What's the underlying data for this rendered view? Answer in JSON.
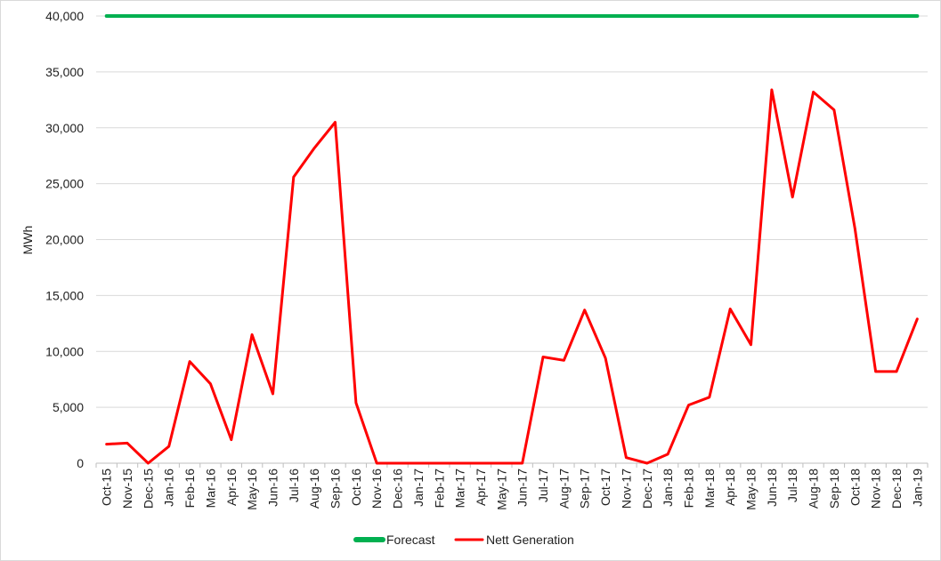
{
  "chart_data": {
    "type": "line",
    "title": "",
    "xlabel": "",
    "ylabel": "MWh",
    "ylim": [
      0,
      40000
    ],
    "yticks": [
      0,
      5000,
      10000,
      15000,
      20000,
      25000,
      30000,
      35000,
      40000
    ],
    "ytick_labels": [
      "0",
      "5,000",
      "10,000",
      "15,000",
      "20,000",
      "25,000",
      "30,000",
      "35,000",
      "40,000"
    ],
    "grid": true,
    "legend_position": "bottom",
    "categories": [
      "Oct-15",
      "Nov-15",
      "Dec-15",
      "Jan-16",
      "Feb-16",
      "Mar-16",
      "Apr-16",
      "May-16",
      "Jun-16",
      "Jul-16",
      "Aug-16",
      "Sep-16",
      "Oct-16",
      "Nov-16",
      "Dec-16",
      "Jan-17",
      "Feb-17",
      "Mar-17",
      "Apr-17",
      "May-17",
      "Jun-17",
      "Jul-17",
      "Aug-17",
      "Sep-17",
      "Oct-17",
      "Nov-17",
      "Dec-17",
      "Jan-18",
      "Feb-18",
      "Mar-18",
      "Apr-18",
      "May-18",
      "Jun-18",
      "Jul-18",
      "Aug-18",
      "Sep-18",
      "Oct-18",
      "Nov-18",
      "Dec-18",
      "Jan-19"
    ],
    "series": [
      {
        "name": "Forecast",
        "color": "#00b050",
        "values": [
          40000,
          40000,
          40000,
          40000,
          40000,
          40000,
          40000,
          40000,
          40000,
          40000,
          40000,
          40000,
          40000,
          40000,
          40000,
          40000,
          40000,
          40000,
          40000,
          40000,
          40000,
          40000,
          40000,
          40000,
          40000,
          40000,
          40000,
          40000,
          40000,
          40000,
          40000,
          40000,
          40000,
          40000,
          40000,
          40000,
          40000,
          40000,
          40000,
          40000
        ]
      },
      {
        "name": "Nett Generation",
        "color": "#ff0000",
        "values": [
          1700,
          1800,
          0,
          1500,
          9100,
          7100,
          2100,
          11500,
          6200,
          25600,
          28200,
          30500,
          5400,
          0,
          0,
          0,
          0,
          0,
          0,
          0,
          0,
          9500,
          9200,
          13700,
          9400,
          500,
          0,
          800,
          5200,
          5900,
          13800,
          10600,
          33400,
          23800,
          33200,
          31600,
          21000,
          8200,
          8200,
          12900
        ]
      }
    ]
  }
}
